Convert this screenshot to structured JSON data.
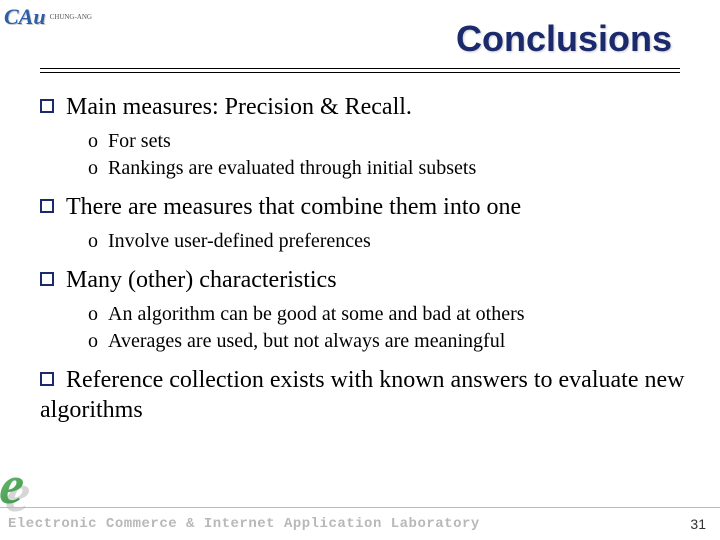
{
  "header": {
    "logo_text": "CAu",
    "logo_sub": "CHUNG-ANG"
  },
  "title": "Conclusions",
  "bullets": [
    {
      "text": "Main measures: Precision & Recall.",
      "subs": [
        "For sets",
        "Rankings are evaluated through initial subsets"
      ]
    },
    {
      "text": "There are measures that combine them into one",
      "subs": [
        "Involve user-defined preferences"
      ]
    },
    {
      "text": "Many (other) characteristics",
      "subs": [
        "An algorithm can be good at some and bad at others",
        "Averages are used, but not always are meaningful"
      ]
    },
    {
      "text": "Reference collection exists with known answers to evaluate new algorithms",
      "subs": []
    }
  ],
  "footer": {
    "text": "Electronic Commerce & Internet Application Laboratory",
    "page": "31",
    "e_logo": "e"
  },
  "colors": {
    "title_color": "#1a2a6c",
    "bullet_border": "#1a2a6c",
    "text_color": "#000000",
    "footer_color": "#b8b8b8",
    "background": "#ffffff"
  },
  "fonts": {
    "title_size": 36,
    "main_size": 24,
    "sub_size": 20,
    "footer_size": 14
  }
}
